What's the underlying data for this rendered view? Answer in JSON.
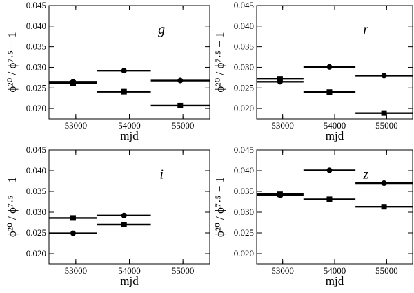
{
  "chart_data": [
    {
      "type": "scatter",
      "panel": "g",
      "xlabel": "mjd",
      "ylabel": "ϕ²⁰ / ϕ⁷·⁵ − 1",
      "xlim": [
        52500,
        55500
      ],
      "ylim": [
        0.0175,
        0.045
      ],
      "xticks": [
        53000,
        54000,
        55000
      ],
      "yticks": [
        0.02,
        0.025,
        0.03,
        0.035,
        0.04,
        0.045
      ],
      "xtick_labels": [
        "53000",
        "54000",
        "55000"
      ],
      "ytick_labels": [
        "0.020",
        "0.025",
        "0.030",
        "0.035",
        "0.040",
        "0.045"
      ],
      "bins": [
        [
          52500,
          53400
        ],
        [
          53400,
          54400
        ],
        [
          54400,
          55500
        ]
      ],
      "series": [
        {
          "marker": "circle",
          "x": [
            52950,
            53900,
            54950
          ],
          "values": [
            0.0265,
            0.0292,
            0.0268
          ]
        },
        {
          "marker": "square",
          "x": [
            52950,
            53900,
            54950
          ],
          "values": [
            0.0262,
            0.0241,
            0.0207
          ]
        }
      ]
    },
    {
      "type": "scatter",
      "panel": "r",
      "xlabel": "mjd",
      "ylabel": "ϕ²⁰ / ϕ⁷·⁵ − 1",
      "xlim": [
        52500,
        55500
      ],
      "ylim": [
        0.0175,
        0.045
      ],
      "xticks": [
        53000,
        54000,
        55000
      ],
      "yticks": [
        0.02,
        0.025,
        0.03,
        0.035,
        0.04,
        0.045
      ],
      "xtick_labels": [
        "53000",
        "54000",
        "55000"
      ],
      "ytick_labels": [
        "0.020",
        "0.025",
        "0.030",
        "0.035",
        "0.040",
        "0.045"
      ],
      "bins": [
        [
          52500,
          53400
        ],
        [
          53400,
          54400
        ],
        [
          54400,
          55500
        ]
      ],
      "series": [
        {
          "marker": "circle",
          "x": [
            52950,
            53900,
            54950
          ],
          "values": [
            0.0265,
            0.0301,
            0.028
          ]
        },
        {
          "marker": "square",
          "x": [
            52950,
            53900,
            54950
          ],
          "values": [
            0.0272,
            0.024,
            0.0189
          ]
        }
      ]
    },
    {
      "type": "scatter",
      "panel": "i",
      "xlabel": "mjd",
      "ylabel": "ϕ²⁰ / ϕ⁷·⁵ − 1",
      "xlim": [
        52500,
        55500
      ],
      "ylim": [
        0.0175,
        0.045
      ],
      "xticks": [
        53000,
        54000,
        55000
      ],
      "yticks": [
        0.02,
        0.025,
        0.03,
        0.035,
        0.04,
        0.045
      ],
      "xtick_labels": [
        "53000",
        "54000",
        "55000"
      ],
      "ytick_labels": [
        "0.020",
        "0.025",
        "0.030",
        "0.035",
        "0.040",
        "0.045"
      ],
      "bins": [
        [
          52500,
          53400
        ],
        [
          53400,
          54400
        ]
      ],
      "series": [
        {
          "marker": "circle",
          "x": [
            52950,
            53900
          ],
          "values": [
            0.0249,
            0.0292
          ]
        },
        {
          "marker": "square",
          "x": [
            52950,
            53900
          ],
          "values": [
            0.0286,
            0.027
          ]
        }
      ]
    },
    {
      "type": "scatter",
      "panel": "z",
      "xlabel": "mjd",
      "ylabel": "ϕ²⁰ / ϕ⁷·⁵ − 1",
      "xlim": [
        52500,
        55500
      ],
      "ylim": [
        0.0175,
        0.045
      ],
      "xticks": [
        53000,
        54000,
        55000
      ],
      "yticks": [
        0.02,
        0.025,
        0.03,
        0.035,
        0.04,
        0.045
      ],
      "xtick_labels": [
        "53000",
        "54000",
        "55000"
      ],
      "ytick_labels": [
        "0.020",
        "0.025",
        "0.030",
        "0.035",
        "0.040",
        "0.045"
      ],
      "bins": [
        [
          52500,
          53400
        ],
        [
          53400,
          54400
        ],
        [
          54400,
          55500
        ]
      ],
      "series": [
        {
          "marker": "circle",
          "x": [
            52950,
            53900,
            54950
          ],
          "values": [
            0.0341,
            0.0401,
            0.037
          ]
        },
        {
          "marker": "square",
          "x": [
            52950,
            53900,
            54950
          ],
          "values": [
            0.0343,
            0.0331,
            0.0313
          ]
        }
      ]
    }
  ]
}
